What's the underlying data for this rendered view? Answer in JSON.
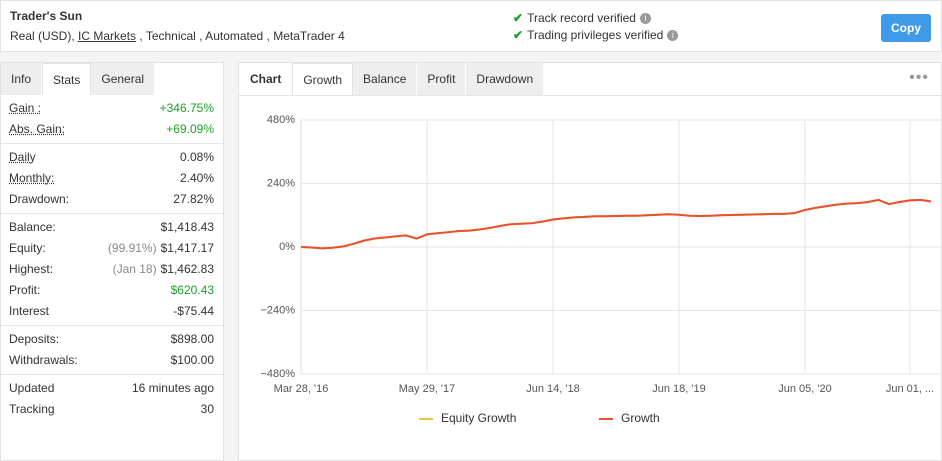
{
  "header": {
    "title": "Trader's Sun",
    "account": "Real (USD), ",
    "broker": "IC Markets",
    "details": " , Technical , Automated , MetaTrader 4",
    "verified": [
      "Track record verified",
      "Trading privileges verified"
    ],
    "button": "Copy"
  },
  "left_tabs": [
    "Info",
    "Stats",
    "General"
  ],
  "stats": [
    [
      {
        "label": "Gain :",
        "value": "+346.75%",
        "color": "#1a9f29"
      },
      {
        "label": "Abs. Gain:",
        "value": "+69.09%",
        "color": "#1a9f29"
      }
    ],
    [
      {
        "label": "Daily",
        "value": "0.08%"
      },
      {
        "label": "Monthly:",
        "value": "2.40%"
      },
      {
        "label": "Drawdown:",
        "value": "27.82%"
      }
    ],
    [
      {
        "label": "Balance:",
        "value": "$1,418.43"
      },
      {
        "label": "Equity:",
        "note": "(99.91%)",
        "value": "$1,417.17"
      },
      {
        "label": "Highest:",
        "note": "(Jan 18)",
        "value": "$1,462.83"
      },
      {
        "label": "Profit:",
        "value": "$620.43",
        "color": "#1a9f29"
      },
      {
        "label": "Interest",
        "value": "-$75.44"
      }
    ],
    [
      {
        "label": "Deposits:",
        "value": "$898.00"
      },
      {
        "label": "Withdrawals:",
        "value": "$100.00"
      }
    ],
    [
      {
        "label": "Updated",
        "value": "16 minutes ago"
      },
      {
        "label": "Tracking",
        "value": "30"
      }
    ]
  ],
  "chart_tabs": {
    "label": "Chart",
    "tabs": [
      "Growth",
      "Balance",
      "Profit",
      "Drawdown"
    ]
  },
  "chart_data": {
    "type": "line",
    "categories": [
      "Mar 28, '16",
      null,
      null,
      null,
      null,
      null,
      null,
      null,
      null,
      null,
      null,
      null,
      "May 29, '17",
      null,
      null,
      null,
      null,
      null,
      null,
      null,
      null,
      null,
      null,
      null,
      "Jun 14, '18",
      null,
      null,
      null,
      null,
      null,
      null,
      null,
      null,
      null,
      null,
      null,
      "Jun 18, '19",
      null,
      null,
      null,
      null,
      null,
      null,
      null,
      null,
      null,
      null,
      null,
      "Jun 05, '20",
      null,
      null,
      null,
      null,
      null,
      null,
      null,
      null,
      null,
      "Jun 01, ...",
      null,
      null
    ],
    "series": [
      {
        "name": "Equity Growth",
        "color": "#f2c23a",
        "values": [
          0,
          -2,
          -5,
          -3,
          2,
          12,
          24,
          32,
          36,
          40,
          44,
          32,
          48,
          52,
          56,
          60,
          62,
          66,
          72,
          80,
          86,
          88,
          90,
          96,
          104,
          108,
          112,
          114,
          116,
          116,
          117,
          118,
          118,
          120,
          122,
          124,
          122,
          118,
          117,
          118,
          120,
          121,
          122,
          123,
          124,
          125,
          125,
          128,
          140,
          148,
          154,
          160,
          164,
          166,
          170,
          178,
          162,
          170,
          176,
          178,
          172
        ]
      },
      {
        "name": "Growth",
        "color": "#e8502f",
        "values": [
          0,
          -2,
          -5,
          -3,
          2,
          12,
          24,
          32,
          36,
          40,
          44,
          32,
          48,
          52,
          56,
          60,
          62,
          66,
          72,
          80,
          86,
          88,
          90,
          96,
          104,
          108,
          112,
          114,
          116,
          116,
          117,
          118,
          118,
          120,
          122,
          124,
          122,
          118,
          117,
          118,
          120,
          121,
          122,
          123,
          124,
          125,
          125,
          128,
          140,
          148,
          154,
          160,
          164,
          166,
          170,
          178,
          162,
          170,
          176,
          178,
          172
        ]
      }
    ],
    "ylim": [
      -480,
      480
    ],
    "yticks": [
      {
        "value": 480,
        "label": "480%"
      },
      {
        "value": 240,
        "label": "240%"
      },
      {
        "value": 0,
        "label": "0%"
      },
      {
        "value": -240,
        "label": "−240%"
      },
      {
        "value": -480,
        "label": "−480%"
      }
    ],
    "grid": true
  }
}
